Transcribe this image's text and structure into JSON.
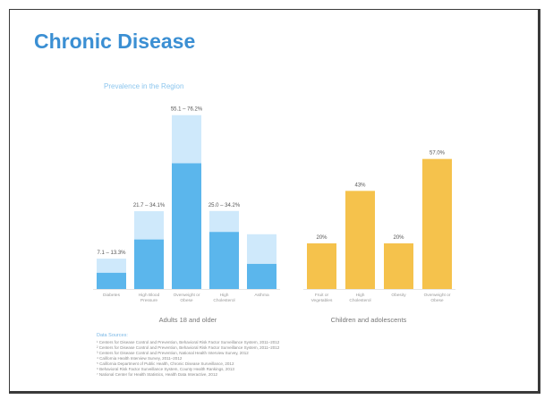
{
  "slide": {
    "title": "Chronic Disease",
    "chart_subtitle": "Prevalence in the Region",
    "sources_heading": "Data Sources:",
    "sources": [
      "¹ Centers for Disease Control and Prevention, Behavioral Risk Factor Surveillance System, 2011–2012",
      "² Centers for Disease Control and Prevention, Behavioral Risk Factor Surveillance System, 2011–2012",
      "³ Centers for Disease Control and Prevention, National Health Interview Survey, 2012",
      "⁴ California Health Interview Survey, 2011–2012",
      "⁵ California Department of Public Health, Chronic Disease Surveillance, 2012",
      "⁶ Behavioral Risk Factor Surveillance System, County Health Rankings, 2013",
      "⁷ National Center for Health Statistics, Health Data Interactive, 2012"
    ]
  },
  "chart_data": [
    {
      "type": "bar",
      "group_label": "Adults 18 and older",
      "categories": [
        "Diabetes",
        "High Blood Pressure",
        "Overweight or Obese",
        "High Cholesterol",
        "Asthma"
      ],
      "value_labels": [
        "7.1 – 13.3%",
        "21.7 – 34.1%",
        "55.1 – 76.2%",
        "25.0 – 34.2%",
        ""
      ],
      "series": [
        {
          "values": [
            7.1,
            21.7,
            55.1,
            25.0,
            11.0
          ]
        },
        {
          "values": [
            13.3,
            34.1,
            76.2,
            34.2,
            24.0
          ]
        }
      ],
      "colors": [
        "#5bb6ec",
        "#cfe9fb"
      ]
    },
    {
      "type": "bar",
      "group_label": "Children and adolescents",
      "categories": [
        "Fruit or Vegetables",
        "High Cholesterol",
        "Obesity",
        "Overweight or Obese"
      ],
      "value_labels": [
        "20%",
        "43%",
        "20%",
        "57.0%"
      ],
      "values": [
        20.0,
        43.0,
        20.0,
        57.0
      ],
      "colors": [
        "#f5c24c"
      ]
    }
  ]
}
